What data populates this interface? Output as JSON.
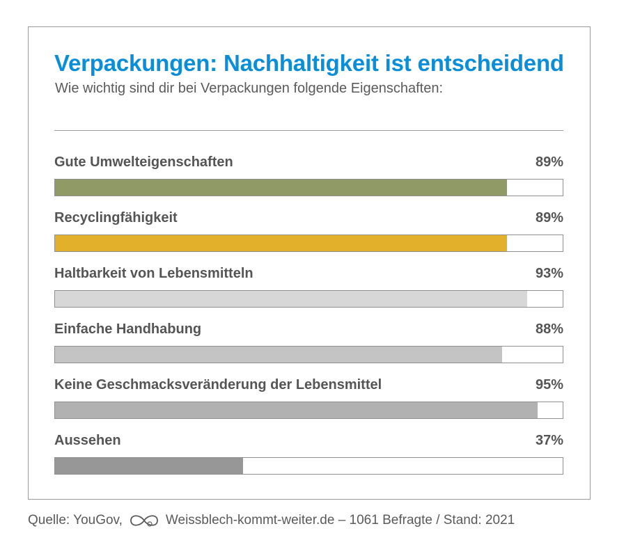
{
  "title": "Verpackungen: Nachhaltigkeit ist entscheidend",
  "subtitle": "Wie wichtig sind dir bei Verpackungen folgende Eigenschaften:",
  "source": {
    "prefix": "Quelle: YouGov,",
    "suffix": "Weissblech-kommt-weiter.de – 1061 Befragte / Stand: 2021",
    "logo_icon": "infinity-loop-icon"
  },
  "chart_data": {
    "type": "bar",
    "orientation": "horizontal",
    "categories": [
      "Gute Umwelteigenschaften",
      "Recyclingfähigkeit",
      "Haltbarkeit von Lebensmitteln",
      "Einfache Handhabung",
      "Keine Geschmacksveränderung der Lebensmittel",
      "Aussehen"
    ],
    "values": [
      89,
      89,
      93,
      88,
      95,
      37
    ],
    "value_labels": [
      "89%",
      "89%",
      "93%",
      "88%",
      "95%",
      "37%"
    ],
    "colors": [
      "#8f9a67",
      "#e3b02c",
      "#d7d7d7",
      "#c4c4c4",
      "#b1b1b1",
      "#979797"
    ],
    "xlim": [
      0,
      100
    ],
    "title": "Verpackungen: Nachhaltigkeit ist entscheidend",
    "subtitle": "Wie wichtig sind dir bei Verpackungen folgende Eigenschaften:",
    "grid": false
  },
  "colors": {
    "title": "#0a8ed9",
    "text": "#555555",
    "border": "#9a9a9a"
  }
}
